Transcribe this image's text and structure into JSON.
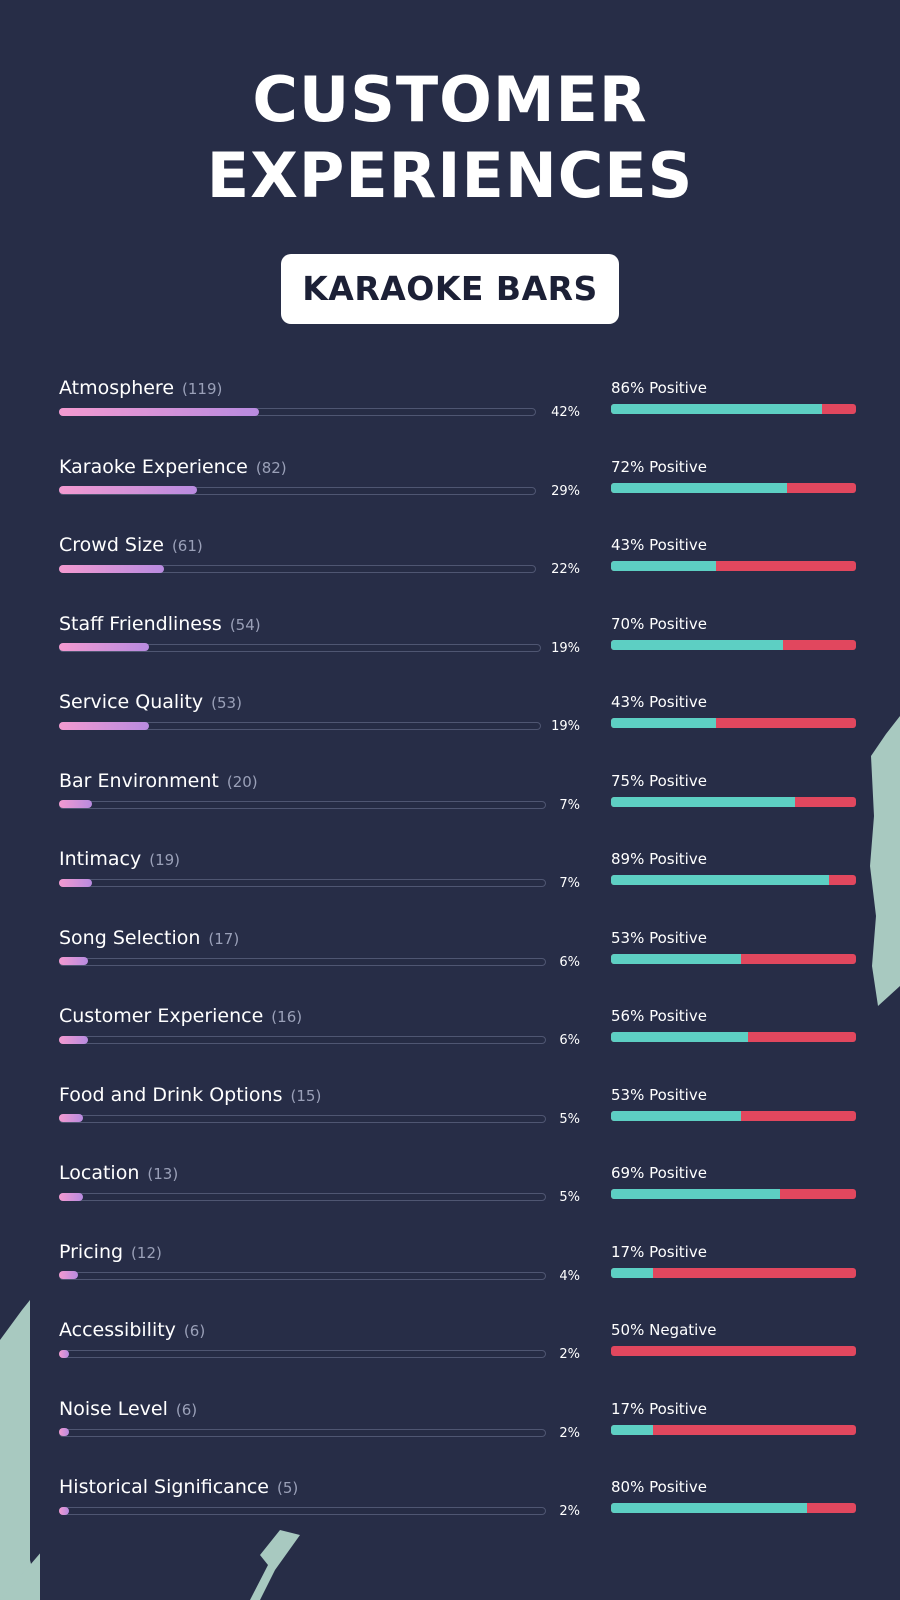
{
  "title_line1": "CUSTOMER",
  "title_line2": "EXPERIENCES",
  "badge": "KARAOKE BARS",
  "colors": {
    "background": "#272d47",
    "mention_bar_gradient_start": "#f39ad0",
    "mention_bar_gradient_end": "#b88be0",
    "positive": "#5dcfc3",
    "negative": "#e1475e",
    "decoration": "#a8c9c0"
  },
  "chart_data": {
    "type": "bar",
    "categories": [
      "Atmosphere",
      "Karaoke Experience",
      "Crowd Size",
      "Staff Friendliness",
      "Service Quality",
      "Bar Environment",
      "Intimacy",
      "Song Selection",
      "Customer Experience",
      "Food and Drink Options",
      "Location",
      "Pricing",
      "Accessibility",
      "Noise Level",
      "Historical Significance"
    ],
    "rows": [
      {
        "label": "Atmosphere",
        "count": "(119)",
        "share": "42%",
        "sentiment_label": "86% Positive",
        "positive": 86
      },
      {
        "label": "Karaoke Experience",
        "count": "(82)",
        "share": "29%",
        "sentiment_label": "72% Positive",
        "positive": 72
      },
      {
        "label": "Crowd Size",
        "count": "(61)",
        "share": "22%",
        "sentiment_label": "43% Positive",
        "positive": 43
      },
      {
        "label": "Staff Friendliness",
        "count": "(54)",
        "share": "19%",
        "sentiment_label": "70% Positive",
        "positive": 70
      },
      {
        "label": "Service Quality",
        "count": "(53)",
        "share": "19%",
        "sentiment_label": "43% Positive",
        "positive": 43
      },
      {
        "label": "Bar Environment",
        "count": "(20)",
        "share": "7%",
        "sentiment_label": "75% Positive",
        "positive": 75
      },
      {
        "label": "Intimacy",
        "count": "(19)",
        "share": "7%",
        "sentiment_label": "89% Positive",
        "positive": 89
      },
      {
        "label": "Song Selection",
        "count": "(17)",
        "share": "6%",
        "sentiment_label": "53% Positive",
        "positive": 53
      },
      {
        "label": "Customer Experience",
        "count": "(16)",
        "share": "6%",
        "sentiment_label": "56% Positive",
        "positive": 56
      },
      {
        "label": "Food and Drink Options",
        "count": "(15)",
        "share": "5%",
        "sentiment_label": "53% Positive",
        "positive": 53
      },
      {
        "label": "Location",
        "count": "(13)",
        "share": "5%",
        "sentiment_label": "69% Positive",
        "positive": 69
      },
      {
        "label": "Pricing",
        "count": "(12)",
        "share": "4%",
        "sentiment_label": "17% Positive",
        "positive": 17
      },
      {
        "label": "Accessibility",
        "count": "(6)",
        "share": "2%",
        "sentiment_label": "50% Negative",
        "positive": 0
      },
      {
        "label": "Noise Level",
        "count": "(6)",
        "share": "2%",
        "sentiment_label": "17% Positive",
        "positive": 17
      },
      {
        "label": "Historical Significance",
        "count": "(5)",
        "share": "2%",
        "sentiment_label": "80% Positive",
        "positive": 80
      }
    ],
    "mention_max": 42
  }
}
